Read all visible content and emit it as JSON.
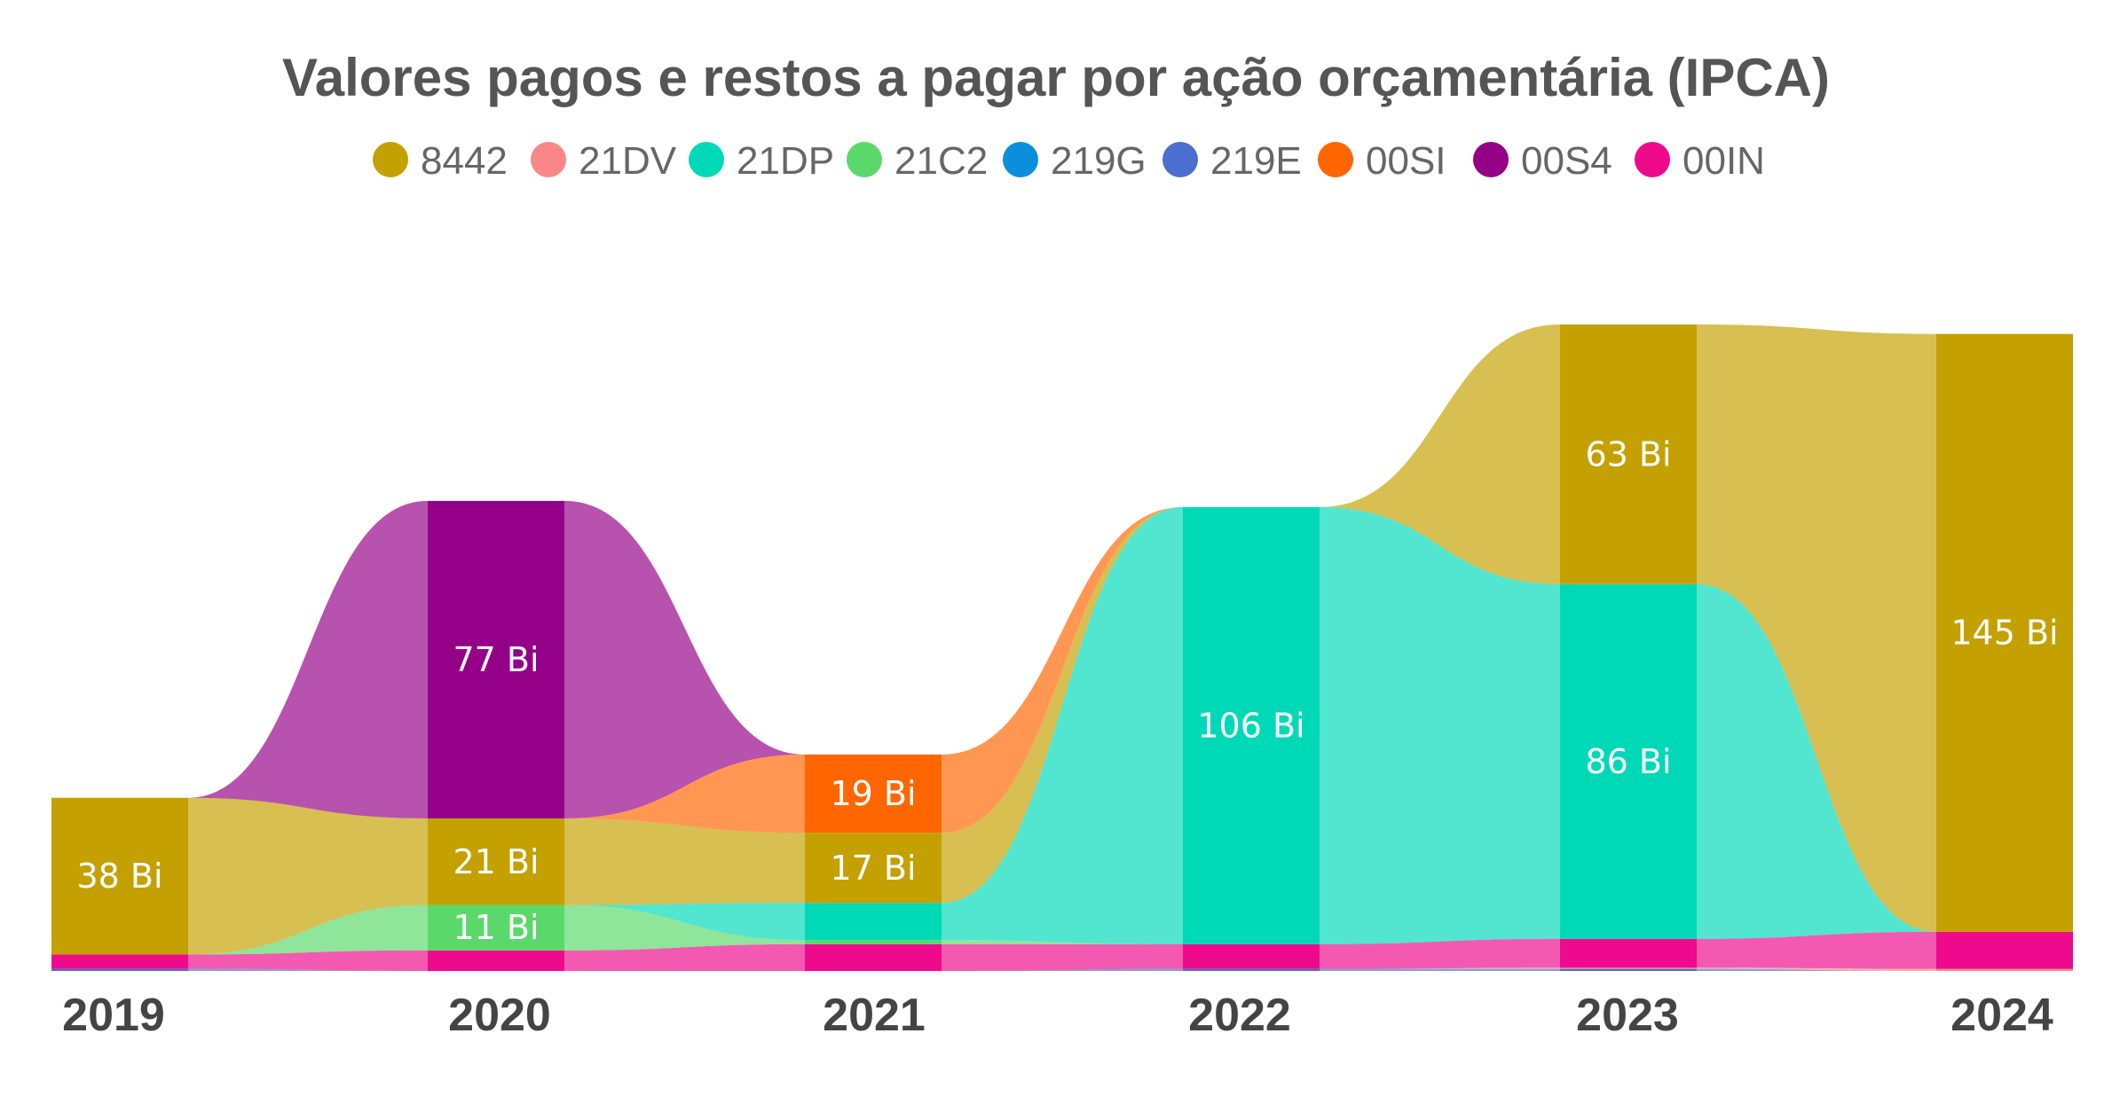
{
  "chart_data": {
    "type": "ribbon",
    "title": "Valores pagos e restos a pagar por ação orçamentária (IPCA)",
    "legend": [
      {
        "code": "8442",
        "color": "#c4a000"
      },
      {
        "code": "21DV",
        "color": "#fa8787"
      },
      {
        "code": "21DP",
        "color": "#00d9b8"
      },
      {
        "code": "21C2",
        "color": "#5ad96a"
      },
      {
        "code": "219G",
        "color": "#0a8fdc"
      },
      {
        "code": "219E",
        "color": "#4a6fd0"
      },
      {
        "code": "00SI",
        "color": "#ff6600"
      },
      {
        "code": "00S4",
        "color": "#950088"
      },
      {
        "code": "00IN",
        "color": "#ee0a8c"
      }
    ],
    "categories": [
      "2019",
      "2020",
      "2021",
      "2022",
      "2023",
      "2024"
    ],
    "series": [
      {
        "name": "8442",
        "values": [
          38,
          21,
          17,
          0,
          63,
          145
        ]
      },
      {
        "name": "21DV",
        "values": [
          0,
          0,
          0,
          0,
          0.3,
          0.5
        ]
      },
      {
        "name": "21DP",
        "values": [
          0,
          0,
          9,
          106,
          86,
          0
        ]
      },
      {
        "name": "21C2",
        "values": [
          0,
          11,
          1,
          0,
          0,
          0
        ]
      },
      {
        "name": "219G",
        "values": [
          0,
          0,
          0,
          0,
          0,
          0
        ]
      },
      {
        "name": "219E",
        "values": [
          0.5,
          0,
          0,
          0.5,
          0.5,
          0
        ]
      },
      {
        "name": "00SI",
        "values": [
          0,
          0,
          19,
          0,
          0,
          0
        ]
      },
      {
        "name": "00S4",
        "values": [
          0,
          77,
          0,
          0,
          0,
          0
        ]
      },
      {
        "name": "00IN",
        "values": [
          3.5,
          5,
          6.5,
          6,
          7,
          9
        ]
      }
    ],
    "data_labels": [
      {
        "year": "2019",
        "series": "8442",
        "label": "38 Bi"
      },
      {
        "year": "2020",
        "series": "00S4",
        "label": "77 Bi"
      },
      {
        "year": "2020",
        "series": "8442",
        "label": "21 Bi"
      },
      {
        "year": "2020",
        "series": "21C2",
        "label": "11 Bi"
      },
      {
        "year": "2021",
        "series": "00SI",
        "label": "19 Bi"
      },
      {
        "year": "2021",
        "series": "8442",
        "label": "17 Bi"
      },
      {
        "year": "2022",
        "series": "21DP",
        "label": "106 Bi"
      },
      {
        "year": "2023",
        "series": "21DP",
        "label": "86 Bi"
      },
      {
        "year": "2023",
        "series": "8442",
        "label": "63 Bi"
      },
      {
        "year": "2024",
        "series": "8442",
        "label": "145 Bi"
      }
    ],
    "ylim": [
      0,
      160
    ],
    "unit": "Bi"
  }
}
